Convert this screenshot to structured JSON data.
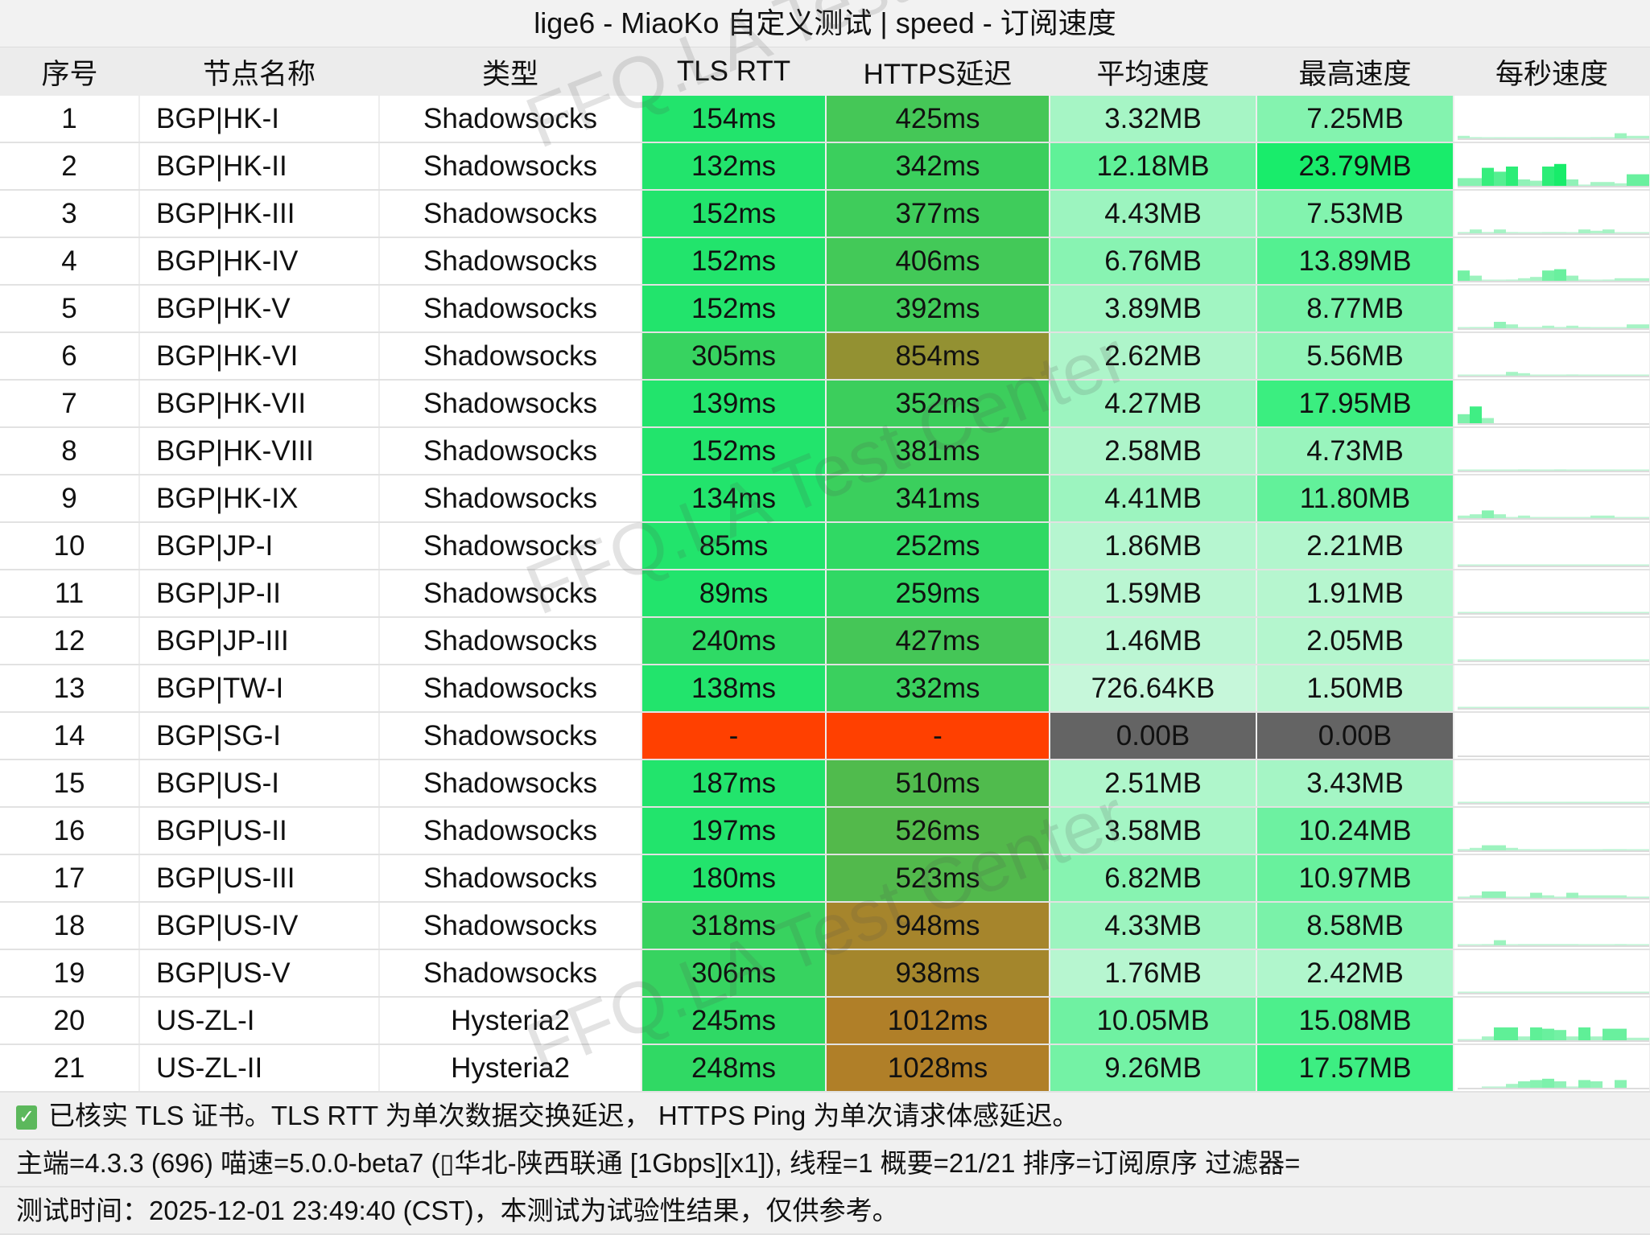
{
  "title": "lige6 - MiaoKo 自定义测试 | speed - 订阅速度",
  "columns": [
    "序号",
    "节点名称",
    "类型",
    "TLS RTT",
    "HTTPS延迟",
    "平均速度",
    "最高速度",
    "每秒速度"
  ],
  "rows": [
    {
      "id": "1",
      "name": "BGP|HK-I",
      "type": "Shadowsocks",
      "tls": "154ms",
      "https": "425ms",
      "avg": "3.32MB",
      "max": "7.25MB",
      "per_second_mb": [
        2,
        1,
        0.5,
        0.8,
        0.5,
        0.5,
        0.5,
        0.5,
        0.8,
        0.5,
        0.5,
        1,
        1,
        4,
        2,
        2
      ]
    },
    {
      "id": "2",
      "name": "BGP|HK-II",
      "type": "Shadowsocks",
      "tls": "132ms",
      "https": "342ms",
      "avg": "12.18MB",
      "max": "23.79MB",
      "per_second_mb": [
        6,
        6,
        14,
        11,
        15,
        5,
        4,
        15,
        17,
        5,
        1,
        3,
        3,
        2,
        9,
        9
      ]
    },
    {
      "id": "3",
      "name": "BGP|HK-III",
      "type": "Shadowsocks",
      "tls": "152ms",
      "https": "377ms",
      "avg": "4.43MB",
      "max": "7.53MB",
      "per_second_mb": [
        1,
        3,
        1,
        3,
        1,
        0.5,
        0.5,
        1,
        1,
        0.5,
        3,
        2,
        3,
        0.3,
        0.3,
        0.3
      ]
    },
    {
      "id": "4",
      "name": "BGP|HK-IV",
      "type": "Shadowsocks",
      "tls": "152ms",
      "https": "406ms",
      "avg": "6.76MB",
      "max": "13.89MB",
      "per_second_mb": [
        8,
        4,
        0.5,
        0.3,
        1,
        2,
        3,
        8,
        9,
        4,
        1,
        0.3,
        1,
        2,
        2,
        2
      ]
    },
    {
      "id": "5",
      "name": "BGP|HK-V",
      "type": "Shadowsocks",
      "tls": "152ms",
      "https": "392ms",
      "avg": "3.89MB",
      "max": "8.77MB",
      "per_second_mb": [
        0.5,
        1,
        1,
        5,
        3,
        1,
        1,
        2,
        1,
        2,
        1,
        0.5,
        0.5,
        0.5,
        3,
        3
      ]
    },
    {
      "id": "6",
      "name": "BGP|HK-VI",
      "type": "Shadowsocks",
      "tls": "305ms",
      "https": "854ms",
      "avg": "2.62MB",
      "max": "5.56MB",
      "per_second_mb": [
        0.3,
        0.3,
        0.3,
        0.3,
        3,
        2,
        0.5,
        0.5,
        0.5,
        1,
        0.5,
        0.5,
        0.5,
        0.5,
        0.5,
        0.5
      ]
    },
    {
      "id": "7",
      "name": "BGP|HK-VII",
      "type": "Shadowsocks",
      "tls": "139ms",
      "https": "352ms",
      "avg": "4.27MB",
      "max": "17.95MB",
      "per_second_mb": [
        7,
        13,
        4,
        0,
        0,
        0,
        0,
        0,
        0,
        0,
        0,
        0,
        0,
        0,
        0,
        0
      ]
    },
    {
      "id": "8",
      "name": "BGP|HK-VIII",
      "type": "Shadowsocks",
      "tls": "152ms",
      "https": "381ms",
      "avg": "2.58MB",
      "max": "4.73MB",
      "per_second_mb": [
        0.5,
        0.5,
        0.5,
        0.5,
        0.5,
        1,
        0.5,
        0.5,
        1,
        0.5,
        0.5,
        0.5,
        0.5,
        0.3,
        0.3,
        0.3
      ]
    },
    {
      "id": "9",
      "name": "BGP|HK-IX",
      "type": "Shadowsocks",
      "tls": "134ms",
      "https": "341ms",
      "avg": "4.41MB",
      "max": "11.80MB",
      "per_second_mb": [
        2,
        3,
        6,
        3,
        0.5,
        2,
        0.3,
        0.3,
        0.3,
        0.3,
        0.3,
        2,
        2,
        0.3,
        0.3,
        0.3
      ]
    },
    {
      "id": "10",
      "name": "BGP|JP-I",
      "type": "Shadowsocks",
      "tls": "85ms",
      "https": "252ms",
      "avg": "1.86MB",
      "max": "2.21MB",
      "per_second_mb": [
        0.3,
        0.3,
        0.3,
        0.3,
        0.3,
        0.3,
        0.3,
        0.3,
        0.3,
        0.3,
        0.3,
        0.3,
        0.3,
        0.3,
        0.3,
        0.3
      ]
    },
    {
      "id": "11",
      "name": "BGP|JP-II",
      "type": "Shadowsocks",
      "tls": "89ms",
      "https": "259ms",
      "avg": "1.59MB",
      "max": "1.91MB",
      "per_second_mb": [
        0.3,
        0.3,
        0.3,
        0.3,
        0.3,
        0.3,
        0.3,
        0.3,
        0.5,
        0.5,
        0.5,
        0.5,
        0.3,
        0.3,
        0.3,
        0.3
      ]
    },
    {
      "id": "12",
      "name": "BGP|JP-III",
      "type": "Shadowsocks",
      "tls": "240ms",
      "https": "427ms",
      "avg": "1.46MB",
      "max": "2.05MB",
      "per_second_mb": [
        0.3,
        0.3,
        0.3,
        0.3,
        0.3,
        0.3,
        0.5,
        0.3,
        0.3,
        0.3,
        0.3,
        0.3,
        0.3,
        0.3,
        0.3,
        0.3
      ]
    },
    {
      "id": "13",
      "name": "BGP|TW-I",
      "type": "Shadowsocks",
      "tls": "138ms",
      "https": "332ms",
      "avg": "726.64KB",
      "max": "1.50MB",
      "per_second_mb": [
        0.3,
        0.3,
        0.3,
        0.3,
        0.3,
        0.3,
        0.3,
        0.3,
        0.3,
        0.3,
        0.3,
        0.3,
        0.3,
        0.3,
        0.3,
        0.3
      ]
    },
    {
      "id": "14",
      "name": "BGP|SG-I",
      "type": "Shadowsocks",
      "tls": "-",
      "https": "-",
      "avg": "0.00B",
      "max": "0.00B",
      "per_second_mb": [
        0,
        0,
        0,
        0,
        0,
        0,
        0,
        0,
        0,
        0,
        0,
        0,
        0,
        0,
        0,
        0
      ]
    },
    {
      "id": "15",
      "name": "BGP|US-I",
      "type": "Shadowsocks",
      "tls": "187ms",
      "https": "510ms",
      "avg": "2.51MB",
      "max": "3.43MB",
      "per_second_mb": [
        0.3,
        0.5,
        0.5,
        0.3,
        0.5,
        0.3,
        0.3,
        0.3,
        0.3,
        0.5,
        0.5,
        0.3,
        0.3,
        0.3,
        0.3,
        0.3
      ]
    },
    {
      "id": "16",
      "name": "BGP|US-II",
      "type": "Shadowsocks",
      "tls": "197ms",
      "https": "526ms",
      "avg": "3.58MB",
      "max": "10.24MB",
      "per_second_mb": [
        1,
        2,
        4,
        4,
        2,
        1,
        0.5,
        0.5,
        0.5,
        0.5,
        0.5,
        0.5,
        1,
        1,
        0.5,
        0.5
      ]
    },
    {
      "id": "17",
      "name": "BGP|US-III",
      "type": "Shadowsocks",
      "tls": "180ms",
      "https": "523ms",
      "avg": "6.82MB",
      "max": "10.97MB",
      "per_second_mb": [
        1,
        2,
        5,
        5,
        1,
        1,
        4,
        2,
        1,
        4,
        2,
        2,
        2,
        2,
        1,
        1
      ]
    },
    {
      "id": "18",
      "name": "BGP|US-IV",
      "type": "Shadowsocks",
      "tls": "318ms",
      "https": "948ms",
      "avg": "4.33MB",
      "max": "8.58MB",
      "per_second_mb": [
        0.3,
        0.3,
        1,
        4,
        0.5,
        1,
        1,
        1,
        1,
        1,
        0.5,
        0.5,
        0.5,
        1,
        0.5,
        0.5
      ]
    },
    {
      "id": "19",
      "name": "BGP|US-V",
      "type": "Shadowsocks",
      "tls": "306ms",
      "https": "938ms",
      "avg": "1.76MB",
      "max": "2.42MB",
      "per_second_mb": [
        0.3,
        0.3,
        0.3,
        0.3,
        0.3,
        0.3,
        0.3,
        0.3,
        0.3,
        0.3,
        0.3,
        0.3,
        0.3,
        0.3,
        0.3,
        0.3
      ]
    },
    {
      "id": "20",
      "name": "US-ZL-I",
      "type": "Hysteria2",
      "tls": "245ms",
      "https": "1012ms",
      "avg": "10.05MB",
      "max": "15.08MB",
      "per_second_mb": [
        0.3,
        0.3,
        3,
        10,
        10,
        3,
        10,
        9,
        8,
        3,
        10,
        3,
        9,
        9,
        2,
        2
      ]
    },
    {
      "id": "21",
      "name": "US-ZL-II",
      "type": "Hysteria2",
      "tls": "248ms",
      "https": "1028ms",
      "avg": "9.26MB",
      "max": "17.57MB",
      "per_second_mb": [
        0,
        0,
        1,
        1,
        3,
        5,
        6,
        7,
        5,
        1,
        6,
        5,
        0,
        6,
        0,
        0
      ]
    }
  ],
  "footer": {
    "check_icon": "checkbox-checked-icon",
    "line1": "已核实 TLS 证书。TLS RTT 为单次数据交换延迟， HTTPS Ping 为单次请求体感延迟。",
    "line2": "主端=4.3.3 (696) 喵速=5.0.0-beta7 (▯华北-陕西联通 [1Gbps][x1]), 线程=1 概要=21/21 排序=订阅原序 过滤器=",
    "line3": "测试时间：2025-12-01 23:49:40 (CST)，本测试为试验性结果，仅供参考。"
  },
  "watermark": "FFQ.LA Test Center",
  "colors": {
    "fail_red": "#ff4000",
    "zero_gray": "#646464",
    "header_bg": "#ececec",
    "title_bg": "#f2f2f2"
  }
}
